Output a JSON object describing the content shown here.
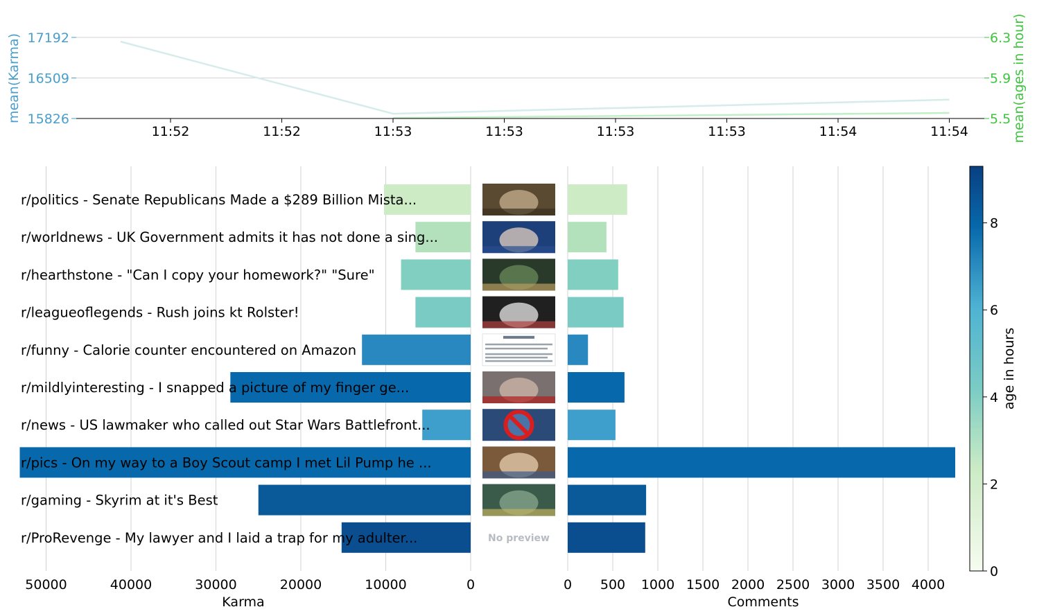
{
  "colors": {
    "left_axis": "#4a9ecb",
    "right_axis": "#3fc43f",
    "grid": "#d3d3d3"
  },
  "chart_data": [
    {
      "type": "line",
      "x_ticks": [
        "11:52",
        "11:52",
        "11:53",
        "11:53",
        "11:53",
        "11:53",
        "11:54",
        "11:54"
      ],
      "ylabel_left": "mean(Karma)",
      "ylabel_right": "mean(ages in hour)",
      "y_ticks_left": [
        "15826",
        "16509",
        "17192"
      ],
      "y_ticks_right": [
        "5.5",
        "5.9",
        "6.3"
      ],
      "ylim_left": [
        15826,
        17192
      ],
      "ylim_right": [
        5.5,
        6.3
      ],
      "series": [
        {
          "axis": "left",
          "color": "#d6ecea",
          "x": [
            -0.45,
            2.0,
            7.0
          ],
          "values": [
            17122,
            15906,
            16144
          ]
        },
        {
          "axis": "right",
          "color": "#c2eec6",
          "x": [
            2.0,
            7.0
          ],
          "values": [
            5.505,
            5.555
          ]
        }
      ],
      "grid": "horizontal"
    },
    {
      "type": "bar",
      "orientation": "horizontal",
      "categories": [
        "r/politics - Senate Republicans Made a $289 Billion Mista...",
        "r/worldnews - UK Government admits it has not done a sing...",
        "r/hearthstone - \"Can I copy your homework?\" \"Sure\"",
        "r/leagueoflegends - Rush joins kt Rolster!",
        "r/funny - Calorie counter encountered on Amazon",
        "r/mildlyinteresting - I snapped a picture of my finger ge...",
        "r/news - US lawmaker who called out Star Wars Battlefront...",
        "r/pics - On my way to a Boy Scout camp I met Lil Pump he ...",
        "r/gaming - Skyrim at it's Best",
        "r/ProRevenge - My lawyer and I laid a trap for my adulter..."
      ],
      "karma": [
        10200,
        6500,
        8200,
        6500,
        12800,
        28300,
        5700,
        53100,
        25000,
        15200
      ],
      "comments": [
        660,
        430,
        560,
        620,
        225,
        630,
        530,
        4300,
        870,
        860
      ],
      "age_hours": [
        1.8,
        3.1,
        4.2,
        4.6,
        6.9,
        8.0,
        6.0,
        8.0,
        8.3,
        8.9
      ],
      "bar_colors": [
        "#cdecc6",
        "#b3e1bb",
        "#81cfc0",
        "#79cbc3",
        "#2a88c0",
        "#0868ac",
        "#3f9fcc",
        "#0868ac",
        "#0a5a9a",
        "#0b4e90"
      ],
      "thumbnails": [
        "photo",
        "photo",
        "photo",
        "photo",
        "text-card",
        "photo",
        "no-symbol",
        "photo",
        "photo",
        "none"
      ],
      "no_preview_label": "No preview",
      "karma_axis": {
        "label": "Karma",
        "ticks": [
          "50000",
          "40000",
          "30000",
          "20000",
          "10000",
          "0"
        ],
        "max": 53100
      },
      "comments_axis": {
        "label": "Comments",
        "ticks": [
          "0",
          "500",
          "1000",
          "1500",
          "2000",
          "2500",
          "3000",
          "3500",
          "4000"
        ],
        "max": 4300
      },
      "colorbar": {
        "label": "age in hours",
        "ticks": [
          "0",
          "2",
          "4",
          "6",
          "8"
        ],
        "max": 9.3
      }
    }
  ]
}
